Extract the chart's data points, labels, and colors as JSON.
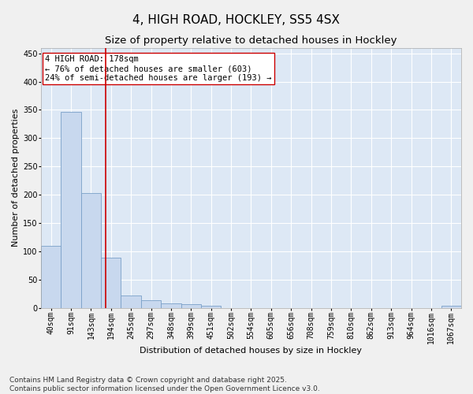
{
  "title": "4, HIGH ROAD, HOCKLEY, SS5 4SX",
  "subtitle": "Size of property relative to detached houses in Hockley",
  "xlabel": "Distribution of detached houses by size in Hockley",
  "ylabel": "Number of detached properties",
  "bar_color": "#c8d8ee",
  "bar_edge_color": "#7aa0c8",
  "background_color": "#dde8f5",
  "grid_color": "#ffffff",
  "categories": [
    "40sqm",
    "91sqm",
    "143sqm",
    "194sqm",
    "245sqm",
    "297sqm",
    "348sqm",
    "399sqm",
    "451sqm",
    "502sqm",
    "554sqm",
    "605sqm",
    "656sqm",
    "708sqm",
    "759sqm",
    "810sqm",
    "862sqm",
    "913sqm",
    "964sqm",
    "1016sqm",
    "1067sqm"
  ],
  "values": [
    110,
    347,
    203,
    88,
    22,
    13,
    8,
    6,
    3,
    0,
    0,
    0,
    0,
    0,
    0,
    0,
    0,
    0,
    0,
    0,
    3
  ],
  "vline_x": 2.72,
  "vline_color": "#cc0000",
  "annotation_text": "4 HIGH ROAD: 178sqm\n← 76% of detached houses are smaller (603)\n24% of semi-detached houses are larger (193) →",
  "annotation_box_color": "#ffffff",
  "annotation_edge_color": "#cc0000",
  "ylim": [
    0,
    460
  ],
  "yticks": [
    0,
    50,
    100,
    150,
    200,
    250,
    300,
    350,
    400,
    450
  ],
  "footer_text": "Contains HM Land Registry data © Crown copyright and database right 2025.\nContains public sector information licensed under the Open Government Licence v3.0.",
  "title_fontsize": 11,
  "subtitle_fontsize": 9.5,
  "axis_label_fontsize": 8,
  "tick_fontsize": 7,
  "annotation_fontsize": 7.5,
  "footer_fontsize": 6.5,
  "fig_bg_color": "#f0f0f0"
}
